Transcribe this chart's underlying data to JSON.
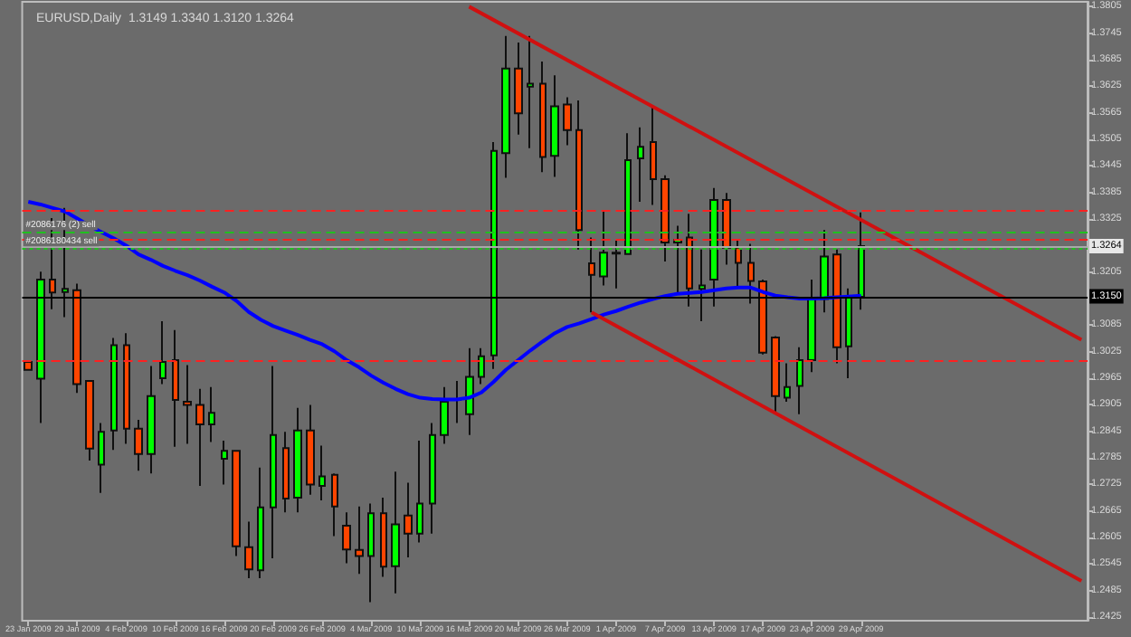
{
  "chart_data": {
    "type": "candlestick",
    "title": "EURUSD,Daily  1.3149 1.3340 1.3120 1.3264",
    "categories": [
      "23 Jan 2009",
      null,
      null,
      null,
      "29 Jan 2009",
      null,
      null,
      null,
      "4 Feb 2009",
      null,
      null,
      null,
      "10 Feb 2009",
      null,
      null,
      null,
      "16 Feb 2009",
      null,
      null,
      null,
      "20 Feb 2009",
      null,
      null,
      null,
      "26 Feb 2009",
      null,
      null,
      null,
      "4 Mar 2009",
      null,
      null,
      null,
      "10 Mar 2009",
      null,
      null,
      null,
      "16 Mar 2009",
      null,
      null,
      null,
      "20 Mar 2009",
      null,
      null,
      null,
      "26 Mar 2009",
      null,
      null,
      null,
      "1 Apr 2009",
      null,
      null,
      null,
      "7 Apr 2009",
      null,
      null,
      null,
      "13 Apr 2009",
      null,
      null,
      null,
      "17 Apr 2009",
      null,
      null,
      null,
      "23 Apr 2009",
      null,
      null,
      null,
      "29 Apr 2009",
      null,
      null,
      null,
      null,
      null,
      null,
      null,
      null,
      null,
      null,
      null,
      null,
      null,
      null,
      null,
      null,
      null,
      null
    ],
    "ohlc": [
      [
        1.3002,
        1.3006,
        1.2982,
        1.2984
      ],
      [
        1.2964,
        1.3206,
        1.2864,
        1.3188
      ],
      [
        1.3188,
        1.3327,
        1.3121,
        1.3159
      ],
      [
        1.316,
        1.335,
        1.3103,
        1.3167
      ],
      [
        1.3164,
        1.3179,
        1.2932,
        1.2952
      ],
      [
        1.2959,
        1.2961,
        1.2779,
        1.2806
      ],
      [
        1.277,
        1.2864,
        1.2706,
        1.2844
      ],
      [
        1.2847,
        1.3056,
        1.2803,
        1.304
      ],
      [
        1.304,
        1.3067,
        1.2817,
        1.2851
      ],
      [
        1.2851,
        1.2871,
        1.2756,
        1.2794
      ],
      [
        1.2794,
        1.2993,
        1.275,
        1.2925
      ],
      [
        1.2965,
        1.3094,
        1.2952,
        1.3002
      ],
      [
        1.3006,
        1.3074,
        1.281,
        1.2916
      ],
      [
        1.2912,
        1.2995,
        1.2817,
        1.2905
      ],
      [
        1.2905,
        1.2941,
        1.2722,
        1.2861
      ],
      [
        1.2861,
        1.2945,
        1.2821,
        1.2887
      ],
      [
        1.2783,
        1.2824,
        1.2725,
        1.2801
      ],
      [
        1.2801,
        1.2803,
        1.2563,
        1.2585
      ],
      [
        1.2583,
        1.2641,
        1.2513,
        1.2533
      ],
      [
        1.2531,
        1.2763,
        1.2513,
        1.2673
      ],
      [
        1.2673,
        1.2993,
        1.2558,
        1.2837
      ],
      [
        1.2807,
        1.2844,
        1.2662,
        1.2693
      ],
      [
        1.2695,
        1.2898,
        1.2662,
        1.2847
      ],
      [
        1.2847,
        1.2905,
        1.2702,
        1.2725
      ],
      [
        1.2722,
        1.2813,
        1.2689,
        1.2743
      ],
      [
        1.2747,
        1.275,
        1.2608,
        1.2675
      ],
      [
        1.2632,
        1.2662,
        1.2547,
        1.2578
      ],
      [
        1.2577,
        1.2675,
        1.2523,
        1.2563
      ],
      [
        1.2563,
        1.2682,
        1.2459,
        1.266
      ],
      [
        1.266,
        1.2695,
        1.2516,
        1.2539
      ],
      [
        1.254,
        1.2754,
        1.2479,
        1.2635
      ],
      [
        1.2655,
        1.2729,
        1.256,
        1.2614
      ],
      [
        1.2614,
        1.2824,
        1.2594,
        1.2682
      ],
      [
        1.2682,
        1.2864,
        1.2614,
        1.2837
      ],
      [
        1.2837,
        1.2945,
        1.2817,
        1.2912
      ],
      [
        1.2916,
        1.2959,
        1.2864,
        1.2917
      ],
      [
        1.2884,
        1.3033,
        1.2837,
        1.2968
      ],
      [
        1.2968,
        1.3033,
        1.2952,
        1.3015
      ],
      [
        1.3017,
        1.3499,
        1.2986,
        1.3479
      ],
      [
        1.3474,
        1.3739,
        1.3418,
        1.3665
      ],
      [
        1.3665,
        1.3724,
        1.3516,
        1.3564
      ],
      [
        1.3624,
        1.3739,
        1.3485,
        1.3631
      ],
      [
        1.3631,
        1.3681,
        1.3431,
        1.3465
      ],
      [
        1.3468,
        1.365,
        1.342,
        1.358
      ],
      [
        1.3584,
        1.36,
        1.3492,
        1.3526
      ],
      [
        1.3526,
        1.3593,
        1.3256,
        1.33
      ],
      [
        1.3225,
        1.3283,
        1.3114,
        1.3199
      ],
      [
        1.3195,
        1.3343,
        1.3175,
        1.3249
      ],
      [
        1.3247,
        1.3276,
        1.3168,
        1.3249
      ],
      [
        1.3246,
        1.3519,
        1.3244,
        1.3458
      ],
      [
        1.3462,
        1.3532,
        1.3364,
        1.3488
      ],
      [
        1.3499,
        1.358,
        1.3357,
        1.3415
      ],
      [
        1.3415,
        1.3424,
        1.3229,
        1.3272
      ],
      [
        1.3272,
        1.331,
        1.3155,
        1.3278
      ],
      [
        1.3283,
        1.3337,
        1.3127,
        1.3168
      ],
      [
        1.3167,
        1.3256,
        1.3094,
        1.3175
      ],
      [
        1.3188,
        1.3395,
        1.3127,
        1.3368
      ],
      [
        1.3368,
        1.3384,
        1.3222,
        1.326
      ],
      [
        1.326,
        1.3276,
        1.3168,
        1.3226
      ],
      [
        1.3226,
        1.3269,
        1.3134,
        1.3185
      ],
      [
        1.3184,
        1.3188,
        1.3019,
        1.3023
      ],
      [
        1.3057,
        1.306,
        1.2887,
        1.2925
      ],
      [
        1.2921,
        1.2999,
        1.2912,
        1.2945
      ],
      [
        1.2948,
        1.3035,
        1.2884,
        1.3006
      ],
      [
        1.3006,
        1.3188,
        1.2979,
        1.3144
      ],
      [
        1.3144,
        1.33,
        1.3114,
        1.324
      ],
      [
        1.3245,
        1.3256,
        1.2999,
        1.3035
      ],
      [
        1.3037,
        1.3168,
        1.2965,
        1.3148
      ],
      [
        1.3149,
        1.334,
        1.312,
        1.3264
      ],
      null,
      null,
      null,
      null,
      null,
      null,
      null,
      null,
      null,
      null,
      null,
      null,
      null,
      null,
      null,
      null,
      null,
      null
    ],
    "colors": [
      "#ff4500",
      "#00ff00",
      "#ff4500",
      "#00ff00",
      "#ff4500",
      "#ff4500",
      "#00ff00",
      "#00ff00",
      "#ff4500",
      "#ff4500",
      "#00ff00",
      "#00ff00",
      "#ff4500",
      "#ff4500",
      "#ff4500",
      "#00ff00",
      "#00ff00",
      "#ff4500",
      "#ff4500",
      "#00ff00",
      "#00ff00",
      "#ff4500",
      "#00ff00",
      "#ff4500",
      "#00ff00",
      "#ff4500",
      "#ff4500",
      "#ff4500",
      "#00ff00",
      "#ff4500",
      "#00ff00",
      "#ff4500",
      "#00ff00",
      "#00ff00",
      "#00ff00",
      "#00ff00",
      "#00ff00",
      "#00ff00",
      "#00ff00",
      "#00ff00",
      "#ff4500",
      "#00ff00",
      "#ff4500",
      "#00ff00",
      "#ff4500",
      "#ff4500",
      "#ff4500",
      "#00ff00",
      "#00ff00",
      "#00ff00",
      "#00ff00",
      "#ff4500",
      "#ff4500",
      "#00ff00",
      "#ff4500",
      "#00ff00",
      "#00ff00",
      "#ff4500",
      "#ff4500",
      "#ff4500",
      "#ff4500",
      "#ff4500",
      "#00ff00",
      "#00ff00",
      "#00ff00",
      "#00ff00",
      "#ff4500",
      "#00ff00",
      "#00ff00",
      null,
      null,
      null,
      null,
      null,
      null,
      null,
      null,
      null,
      null,
      null,
      null,
      null,
      null,
      null,
      null,
      null,
      null
    ],
    "series": [
      {
        "type": "line",
        "color": "#0000ff",
        "values": [
          1.3364,
          1.3358,
          1.335,
          1.3342,
          1.3326,
          1.331,
          1.3295,
          1.3281,
          1.3265,
          1.3245,
          1.3233,
          1.3219,
          1.3208,
          1.3198,
          1.3186,
          1.3172,
          1.3159,
          1.314,
          1.3115,
          1.3097,
          1.3083,
          1.3073,
          1.3063,
          1.3052,
          1.3042,
          1.3026,
          1.3006,
          1.299,
          1.2971,
          1.2955,
          1.2941,
          1.2929,
          1.2921,
          1.2918,
          1.2917,
          1.2917,
          1.2921,
          1.2933,
          1.2957,
          1.2984,
          1.3006,
          1.3028,
          1.3048,
          1.3067,
          1.3081,
          1.3089,
          1.3099,
          1.3109,
          1.3117,
          1.3127,
          1.3136,
          1.3144,
          1.3151,
          1.3156,
          1.3158,
          1.316,
          1.3164,
          1.3168,
          1.317,
          1.317,
          1.316,
          1.3152,
          1.3148,
          1.3145,
          1.3145,
          1.3146,
          1.3148,
          1.315,
          1.3152,
          null,
          null,
          null,
          null,
          null,
          null,
          null,
          null,
          null,
          null,
          null,
          null,
          null,
          null,
          null,
          null,
          null,
          null
        ]
      },
      {
        "type": "line",
        "color": "#d01010",
        "values": [
          null,
          null,
          null,
          null,
          null,
          null,
          null,
          null,
          null,
          null,
          null,
          null,
          null,
          null,
          null,
          null,
          null,
          null,
          null,
          null,
          null,
          null,
          null,
          null,
          null,
          null,
          null,
          null,
          null,
          null,
          null,
          null,
          null,
          null,
          null,
          null,
          1.3805,
          null,
          null,
          null,
          null,
          null,
          null,
          null,
          null,
          null,
          null,
          null,
          null,
          null,
          null,
          null,
          null,
          null,
          null,
          null,
          null,
          null,
          null,
          null,
          null,
          null,
          null,
          null,
          null,
          null,
          null,
          null,
          null,
          null,
          null,
          null,
          null,
          null,
          null,
          null,
          null,
          null,
          null,
          null,
          null,
          null,
          null,
          null,
          null,
          null,
          1.3052
        ]
      },
      {
        "type": "line",
        "color": "#d01010",
        "values": [
          null,
          null,
          null,
          null,
          null,
          null,
          null,
          null,
          null,
          null,
          null,
          null,
          null,
          null,
          null,
          null,
          null,
          null,
          null,
          null,
          null,
          null,
          null,
          null,
          null,
          null,
          null,
          null,
          null,
          null,
          null,
          null,
          null,
          null,
          null,
          null,
          null,
          null,
          null,
          null,
          null,
          null,
          null,
          null,
          null,
          null,
          1.3114,
          null,
          null,
          null,
          null,
          null,
          null,
          null,
          null,
          null,
          null,
          null,
          null,
          null,
          null,
          null,
          null,
          null,
          null,
          null,
          null,
          null,
          null,
          null,
          null,
          null,
          null,
          null,
          null,
          null,
          null,
          null,
          null,
          null,
          null,
          null,
          null,
          null,
          null,
          null,
          1.2507
        ]
      }
    ],
    "ref_lines": [
      {
        "axis": "y",
        "value": 1.3344,
        "color": "#ff2020",
        "line_style": "dashed"
      },
      {
        "axis": "y",
        "value": 1.3296,
        "color": "#20c020",
        "line_style": "dashed",
        "label": "#2086176 (2) sell"
      },
      {
        "axis": "y",
        "value": 1.3278,
        "color": "#ff2020",
        "line_style": "dashed"
      },
      {
        "axis": "y",
        "value": 1.3259,
        "color": "#20c020",
        "line_style": "dotted",
        "label": "#2086180434 sell"
      },
      {
        "axis": "y",
        "value": 1.3264,
        "color": "#a8a8a8",
        "line_style": "solid",
        "label": "1.3264"
      },
      {
        "axis": "y",
        "value": 1.315,
        "color": "#000000",
        "line_style": "solid",
        "label": "1.3150"
      },
      {
        "axis": "y",
        "value": 1.3006,
        "color": "#ff2020",
        "line_style": "dashed"
      }
    ],
    "ylim": [
      1.2417,
      1.3816
    ],
    "yticks": [
      1.3805,
      1.3745,
      1.3685,
      1.3625,
      1.3565,
      1.3505,
      1.3445,
      1.3385,
      1.3325,
      1.3205,
      1.3085,
      1.3025,
      1.2965,
      1.2905,
      1.2845,
      1.2785,
      1.2725,
      1.2665,
      1.2605,
      1.2545,
      1.2485,
      1.2425
    ],
    "grid": false
  }
}
